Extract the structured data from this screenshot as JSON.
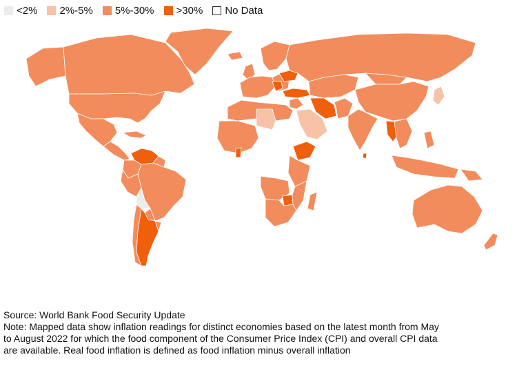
{
  "legend": [
    {
      "label": "<2%",
      "color": "#ececec"
    },
    {
      "label": "2%-5%",
      "color": "#f7c2a6"
    },
    {
      "label": "5%-30%",
      "color": "#f28c5c"
    },
    {
      "label": ">30%",
      "color": "#f05f0c"
    },
    {
      "label": "No Data",
      "color": "#ffffff"
    }
  ],
  "notes": {
    "source": "Source: World Bank Food Security Update",
    "note_line1": "Note: Mapped data show inflation readings for distinct economies based on the latest month from May",
    "note_line2": "to August 2022 for which the food component of the Consumer Price Index (CPI) and overall CPI data",
    "note_line3": "are available. Real food inflation is defined as food inflation minus overall inflation"
  },
  "colors": {
    "no_data_border": "#333333",
    "land_border": "#ffffff"
  }
}
